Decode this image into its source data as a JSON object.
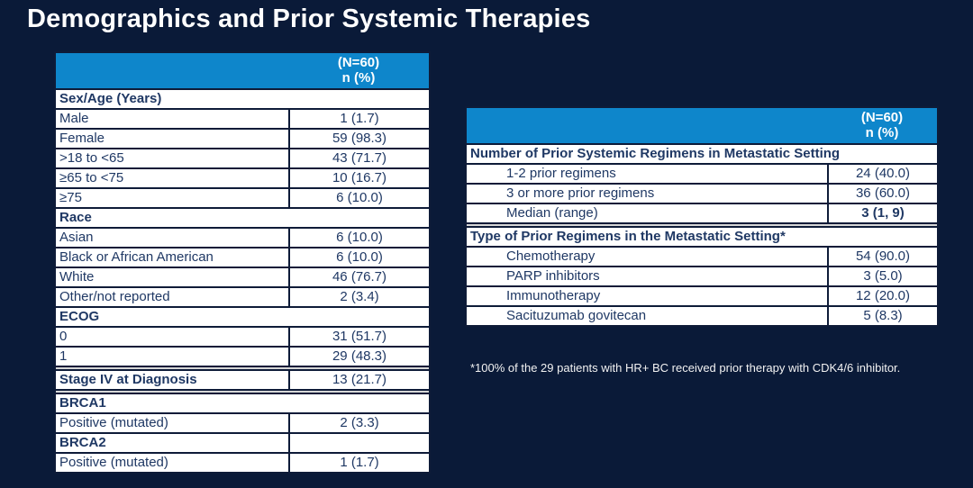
{
  "title": "Demographics and Prior Systemic Therapies",
  "colors": {
    "background": "#0A1A38",
    "header_blue": "#0E86CB",
    "cell_text": "#1F3864",
    "cell_background": "#FFFFFF",
    "border": "#0E1B38",
    "title_text": "#FFFFFF"
  },
  "left_table": {
    "header": {
      "line1": "(N=60)",
      "line2": "n (%)"
    },
    "rows": [
      {
        "type": "section",
        "label": "Sex/Age (Years)"
      },
      {
        "type": "item",
        "indent": 1,
        "label": "Male",
        "value": "1 (1.7)"
      },
      {
        "type": "item",
        "indent": 1,
        "label": "Female",
        "value": "59 (98.3)"
      },
      {
        "type": "item",
        "indent": 2,
        "label": ">18 to <65",
        "value": "43 (71.7)"
      },
      {
        "type": "item",
        "indent": 2,
        "label": "≥65 to <75",
        "value": "10 (16.7)"
      },
      {
        "type": "item",
        "indent": 2,
        "label": "≥75",
        "value": "6 (10.0)"
      },
      {
        "type": "section",
        "label": "Race"
      },
      {
        "type": "item",
        "indent": 1,
        "label": "Asian",
        "value": "6 (10.0)"
      },
      {
        "type": "item",
        "indent": 1,
        "label": "Black or African American",
        "value": "6 (10.0)"
      },
      {
        "type": "item",
        "indent": 1,
        "label": "White",
        "value": "46 (76.7)"
      },
      {
        "type": "item",
        "indent": 1,
        "label": "Other/not reported",
        "value": "2 (3.4)"
      },
      {
        "type": "section",
        "label": "ECOG"
      },
      {
        "type": "item",
        "indent": 1,
        "label": "0",
        "value": "31 (51.7)"
      },
      {
        "type": "item",
        "indent": 1,
        "label": "1",
        "value": "29 (48.3)"
      },
      {
        "type": "bold-item",
        "gap_before": true,
        "label": "Stage IV at Diagnosis",
        "value": "13 (21.7)"
      },
      {
        "type": "section",
        "gap_before": true,
        "label": "BRCA1"
      },
      {
        "type": "item",
        "indent": 1,
        "label": "Positive (mutated)",
        "value": "2 (3.3)"
      },
      {
        "type": "section-with-value",
        "label": "BRCA2",
        "value": ""
      },
      {
        "type": "item",
        "indent": 1,
        "label": "Positive (mutated)",
        "value": "1 (1.7)"
      }
    ]
  },
  "right_table": {
    "header": {
      "line1": "(N=60)",
      "line2": "n (%)"
    },
    "rows": [
      {
        "type": "section",
        "label": "Number of Prior Systemic Regimens in Metastatic Setting"
      },
      {
        "type": "item",
        "indent": 1,
        "label": "1-2 prior regimens",
        "value": "24 (40.0)"
      },
      {
        "type": "item",
        "indent": 1,
        "label": "3 or more prior regimens",
        "value": "36 (60.0)"
      },
      {
        "type": "item",
        "indent": 1,
        "label": "Median (range)",
        "value": "3 (1, 9)",
        "bold_value": true
      },
      {
        "type": "section",
        "gap_before": true,
        "label": "Type of Prior Regimens in the Metastatic Setting*"
      },
      {
        "type": "item",
        "indent": 1,
        "label": "Chemotherapy",
        "value": "54 (90.0)"
      },
      {
        "type": "item",
        "indent": 1,
        "label": "PARP inhibitors",
        "value": "3 (5.0)"
      },
      {
        "type": "item",
        "indent": 1,
        "label": "Immunotherapy",
        "value": "12 (20.0)"
      },
      {
        "type": "item",
        "indent": 1,
        "label": "Sacituzumab govitecan",
        "value": "5 (8.3)"
      }
    ]
  },
  "footnote": "*100% of the 29 patients with HR+ BC received prior therapy with CDK4/6 inhibitor."
}
